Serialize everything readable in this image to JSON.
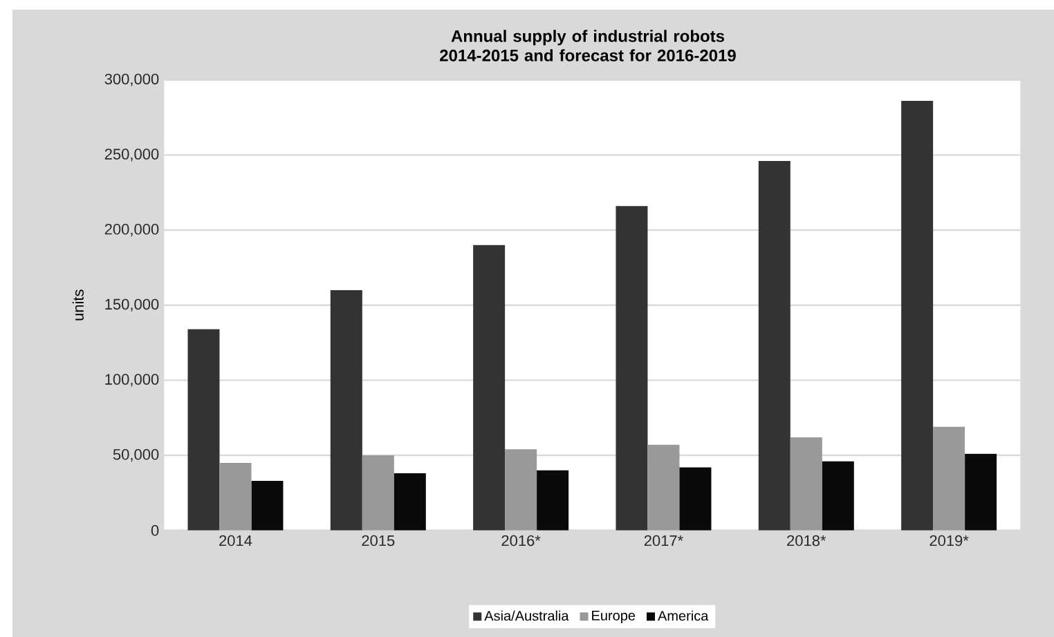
{
  "chart_data": {
    "type": "bar",
    "title": "Annual supply of industrial robots\n2014-2015 and forecast for 2016-2019",
    "ylabel": "units",
    "categories": [
      "2014",
      "2015",
      "2016*",
      "2017*",
      "2018*",
      "2019*"
    ],
    "series": [
      {
        "name": "Asia/Australia",
        "color": "#333333",
        "values": [
          134000,
          160000,
          190000,
          216000,
          246000,
          286000
        ]
      },
      {
        "name": "Europe",
        "color": "#999999",
        "values": [
          45000,
          50000,
          54000,
          57000,
          62000,
          69000
        ]
      },
      {
        "name": "America",
        "color": "#0a0a0a",
        "values": [
          33000,
          38000,
          40000,
          42000,
          46000,
          51000
        ]
      }
    ],
    "ylim": [
      0,
      300000
    ],
    "yticks": [
      {
        "value": 0,
        "label": "0"
      },
      {
        "value": 50000,
        "label": "50,000"
      },
      {
        "value": 100000,
        "label": "100,000"
      },
      {
        "value": 150000,
        "label": "150,000"
      },
      {
        "value": 200000,
        "label": "200,000"
      },
      {
        "value": 250000,
        "label": "250,000"
      },
      {
        "value": 300000,
        "label": "300,000"
      }
    ],
    "grid": "y",
    "legend": "bottom"
  }
}
